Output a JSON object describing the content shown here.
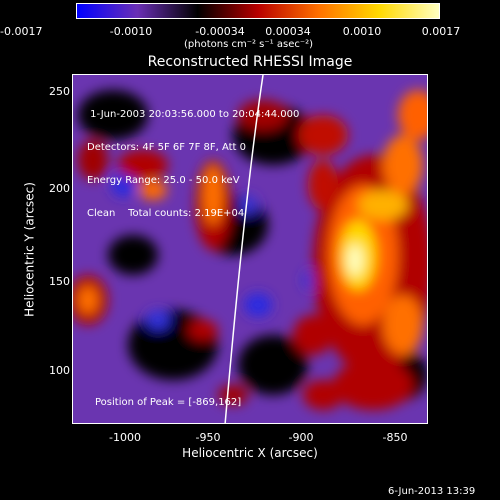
{
  "colorbar": {
    "tick_labels": [
      "-0.0017",
      "-0.0010",
      "-0.00034",
      "0.00034",
      "0.0010",
      "0.0017"
    ],
    "units_label": "(photons cm⁻² s⁻¹ asec⁻²)"
  },
  "image": {
    "title": "Reconstructed RHESSI Image",
    "info_lines": [
      " 1-Jun-2003 20:03:56.000 to 20:04:44.000",
      "Detectors: 4F 5F 6F 7F 8F, Att 0",
      "Energy Range: 25.0 - 50.0 keV",
      "Clean    Total counts: 2.19E+04"
    ],
    "peak_label": "Position of Peak = [-869,162]",
    "x_axis_label": "Heliocentric X (arcsec)",
    "y_axis_label": "Heliocentric Y (arcsec)",
    "x_ticks": [
      "-1000",
      "-950",
      "-900",
      "-850"
    ],
    "y_ticks": [
      "250",
      "200",
      "150",
      "100"
    ]
  },
  "footer": {
    "timestamp": "6-Jun-2013 13:39"
  },
  "colors": {
    "background": "#000000",
    "limb_line": "#ffffff",
    "colormap": [
      "#0000ff",
      "#6a2fb5",
      "#000000",
      "#b80000",
      "#ff7000",
      "#ffd800",
      "#ffffc0"
    ]
  }
}
